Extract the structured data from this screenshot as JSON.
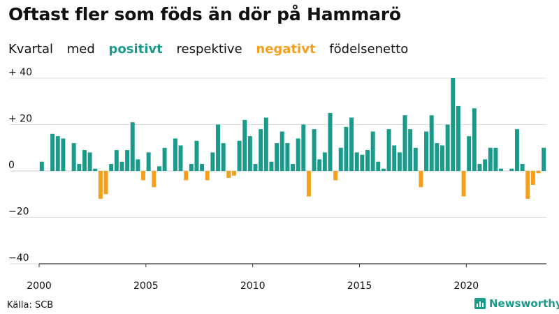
{
  "title": "Oftast fler som föds än dör på Hammarö",
  "subtitle": {
    "prefix": "Kvartal",
    "word1": "med",
    "positive": "positivt",
    "word2": "respektive",
    "negative": "negativt",
    "suffix": "födelsenetto"
  },
  "source": "Källa: SCB",
  "brand": "Newsworthy",
  "colors": {
    "positive": "#1a9a8b",
    "negative": "#f5a01a",
    "grid": "#dddddd",
    "axis": "#333333"
  },
  "chart_data": {
    "type": "bar",
    "x_start": "2000Q1",
    "x_tick_labels": [
      "2000",
      "2005",
      "2010",
      "2015",
      "2020"
    ],
    "y_tick_labels": [
      "+ 40",
      "+ 20",
      "0",
      "−20",
      "−40"
    ],
    "y_tick_values": [
      40,
      20,
      0,
      -20,
      -40
    ],
    "ylim": [
      -40,
      40
    ],
    "values": [
      4,
      0,
      16,
      15,
      14,
      0,
      12,
      3,
      9,
      8,
      1,
      -12,
      -10,
      3,
      9,
      4,
      9,
      21,
      5,
      -4,
      8,
      -7,
      2,
      10,
      0,
      14,
      11,
      -4,
      3,
      13,
      3,
      -4,
      8,
      20,
      12,
      -3,
      -2,
      13,
      22,
      15,
      3,
      18,
      23,
      4,
      12,
      17,
      12,
      3,
      14,
      20,
      -11,
      18,
      5,
      8,
      25,
      -4,
      10,
      19,
      23,
      8,
      7,
      9,
      17,
      4,
      1,
      18,
      11,
      8,
      24,
      18,
      10,
      -7,
      17,
      24,
      12,
      11,
      20,
      40,
      28,
      -11,
      15,
      27,
      3,
      5,
      10,
      10,
      1,
      0,
      1,
      18,
      3,
      -12,
      -6,
      -1,
      10
    ]
  }
}
